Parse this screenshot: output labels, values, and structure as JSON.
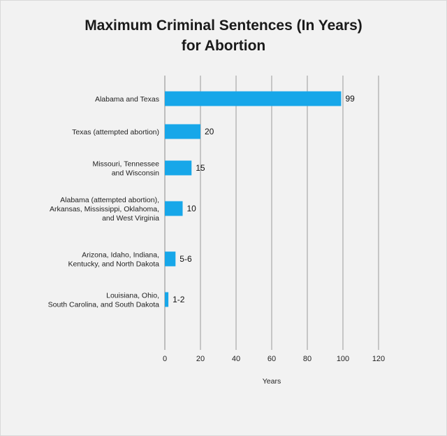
{
  "chart_data": {
    "type": "bar",
    "orientation": "horizontal",
    "title_lines": [
      "Maximum Criminal Sentences (In Years)",
      "for Abortion"
    ],
    "xlabel": "Years",
    "ylabel": "",
    "xlim": [
      0,
      120
    ],
    "xticks": [
      0,
      20,
      40,
      60,
      80,
      100,
      120
    ],
    "grid": "vertical",
    "bar_color": "#17a7e9",
    "categories": [
      [
        "Alabama and Texas"
      ],
      [
        "Texas (attempted abortion)"
      ],
      [
        "Missouri, Tennessee",
        "and Wisconsin"
      ],
      [
        "Alabama (attempted abortion),",
        "Arkansas, Mississippi, Oklahoma,",
        "and West Virginia"
      ],
      [
        "Arizona, Idaho, Indiana,",
        "Kentucky, and North Dakota"
      ],
      [
        "Louisiana, Ohio,",
        "South Carolina, and South Dakota"
      ]
    ],
    "values": [
      99,
      20,
      15,
      10,
      6,
      2
    ],
    "value_labels": [
      "99",
      "20",
      "15",
      "10",
      "5-6",
      "1-2"
    ]
  }
}
